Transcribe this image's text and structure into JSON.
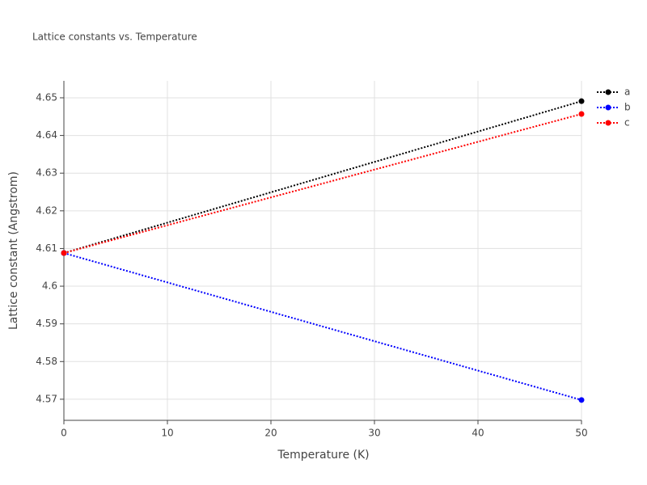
{
  "chart_data": {
    "type": "line",
    "title": "Lattice constants vs. Temperature",
    "x_label": "Temperature (K)",
    "y_label": "Lattice constant (Angstrom)",
    "x": [
      0,
      50
    ],
    "series": [
      {
        "name": "a",
        "color": "#000000",
        "values": [
          4.6088,
          4.6491
        ]
      },
      {
        "name": "b",
        "color": "#0000ff",
        "values": [
          4.6088,
          4.5698
        ]
      },
      {
        "name": "c",
        "color": "#ff0000",
        "values": [
          4.6088,
          4.6457
        ]
      }
    ],
    "xlim": [
      0,
      50
    ],
    "xticks": [
      0,
      10,
      20,
      30,
      40,
      50
    ],
    "ylim": [
      4.5644,
      4.6545
    ],
    "yticks": [
      4.57,
      4.58,
      4.59,
      4.6,
      4.61,
      4.62,
      4.63,
      4.64,
      4.65
    ],
    "grid": true,
    "legend_position": "right"
  }
}
